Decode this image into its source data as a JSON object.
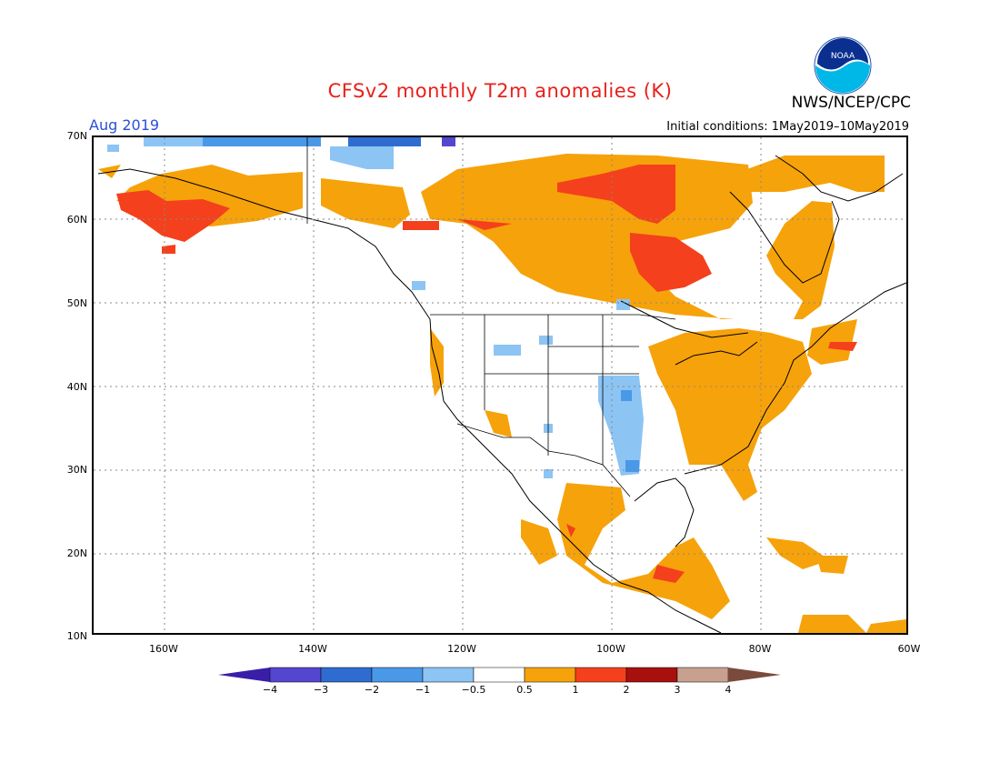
{
  "header": {
    "title": "CFSv2 monthly T2m anomalies (K)",
    "agency": "NWS/NCEP/CPC",
    "logo_text": "NOAA",
    "month": "Aug 2019",
    "initial_conditions": "Initial conditions: 1May2019–10May2019"
  },
  "axes": {
    "lat_labels": [
      "70N",
      "60N",
      "50N",
      "40N",
      "30N",
      "20N",
      "10N"
    ],
    "lon_labels": [
      "160W",
      "140W",
      "120W",
      "100W",
      "80W",
      "60W"
    ]
  },
  "colorbar": {
    "labels": [
      "−4",
      "−3",
      "−2",
      "−1",
      "−0.5",
      "0.5",
      "1",
      "2",
      "3",
      "4"
    ],
    "colors": [
      "#3a1ea8",
      "#5546d0",
      "#2e6cd0",
      "#4a98e8",
      "#8cc4f4",
      "#ffffff",
      "#f6a20a",
      "#f4401c",
      "#a8100e",
      "#c8a090",
      "#7a4b3d"
    ]
  },
  "colors": {
    "warm_1": "#f6a20a",
    "warm_2": "#f4401c",
    "warm_3": "#a8100e",
    "cool_05": "#8cc4f4",
    "cool_1": "#4a98e8",
    "cool_2": "#2e6cd0",
    "cool_3": "#5546d0",
    "title": "#e8201b",
    "month": "#2a4fd6"
  }
}
